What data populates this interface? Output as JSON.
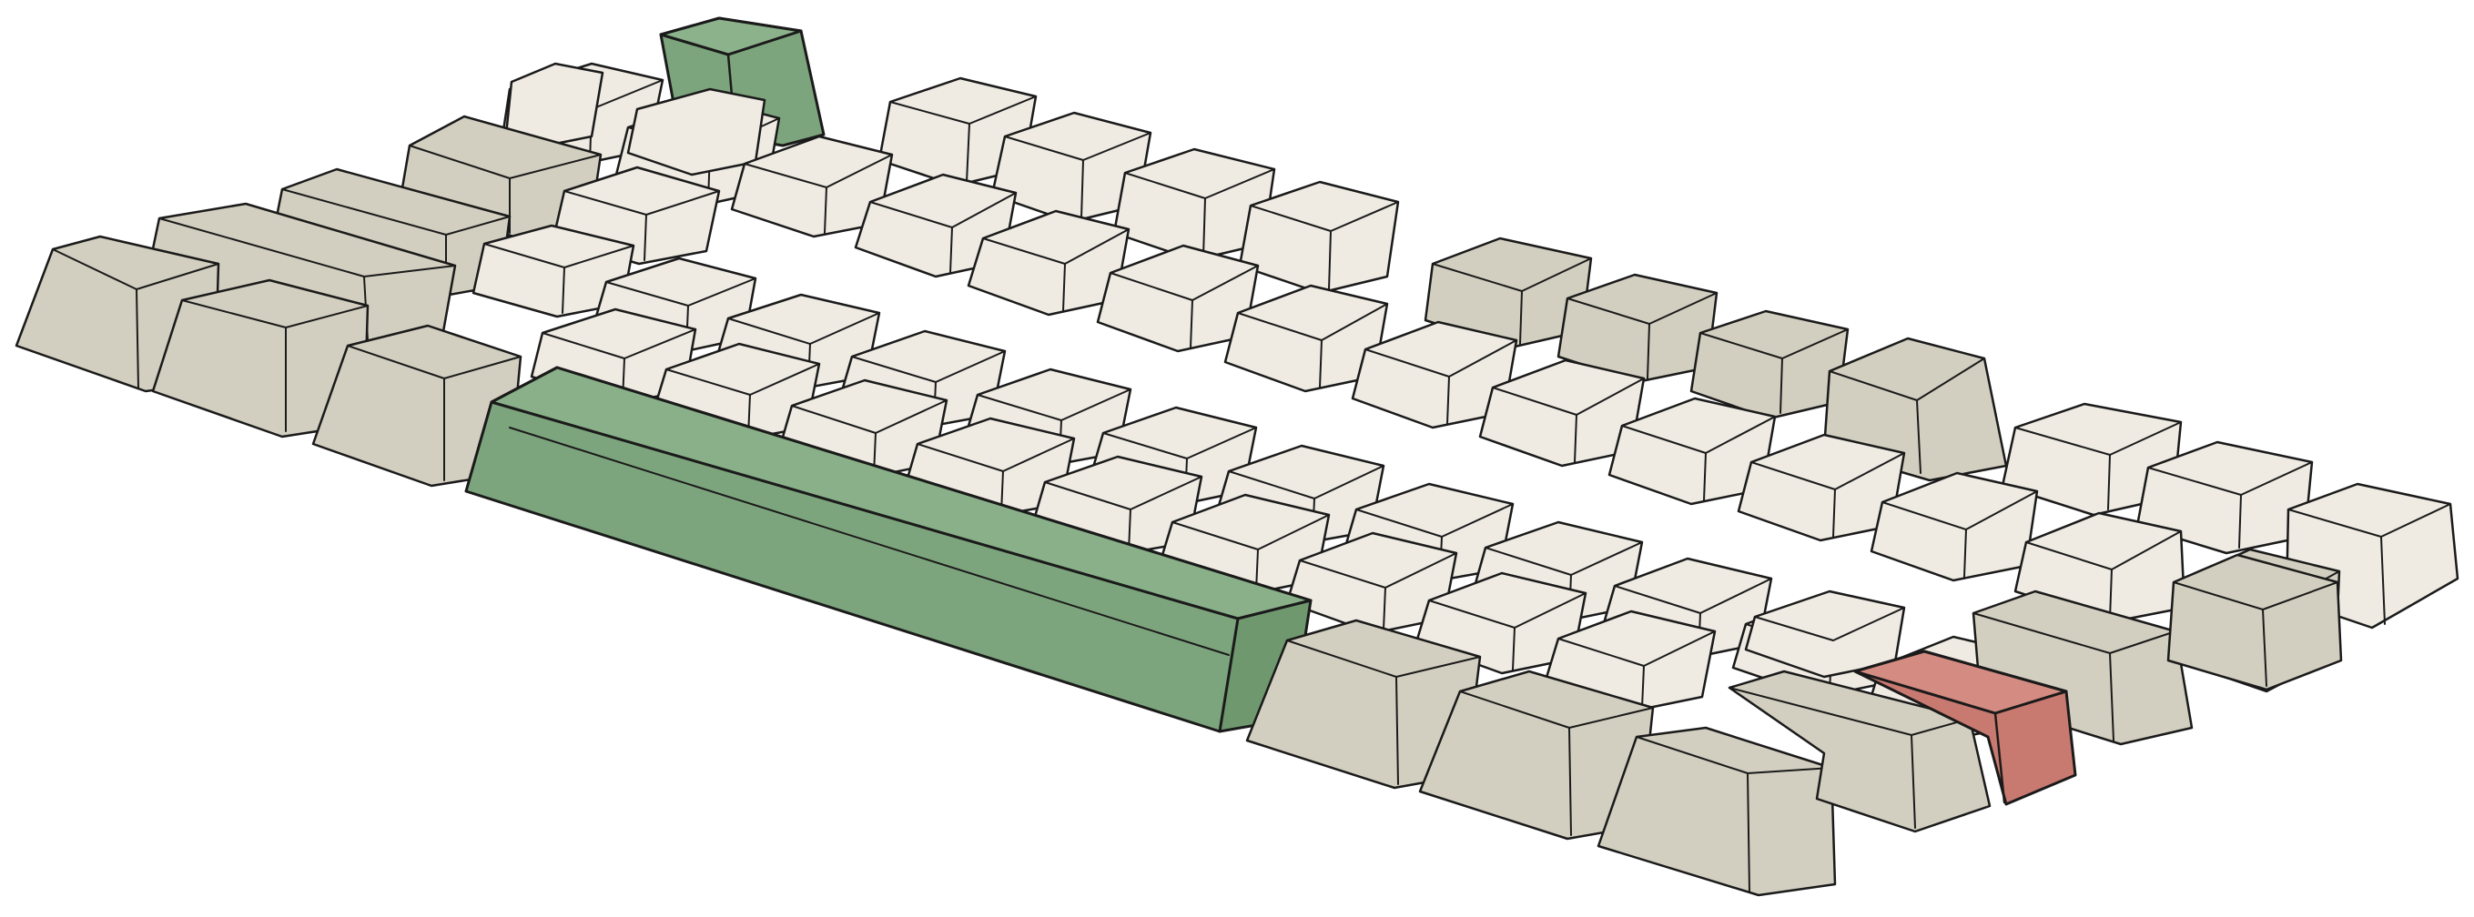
{
  "illustration": {
    "subject": "keyboard-keycaps",
    "colors": {
      "alpha_keycap": "#efebe3",
      "modifier_keycap": "#d3cfc0",
      "accent_green": "#7da57d",
      "accent_red": "#c97a70",
      "outline": "#1a1a1a"
    },
    "rows": [
      {
        "id": "row-1",
        "legend": "",
        "keys": 12
      },
      {
        "id": "row-2",
        "legend": "",
        "keys": 13
      },
      {
        "id": "row-3",
        "legend": "",
        "keys": 13
      },
      {
        "id": "row-4",
        "legend": "",
        "keys": 12
      },
      {
        "id": "row-5",
        "legend": "",
        "keys": 8
      }
    ]
  }
}
